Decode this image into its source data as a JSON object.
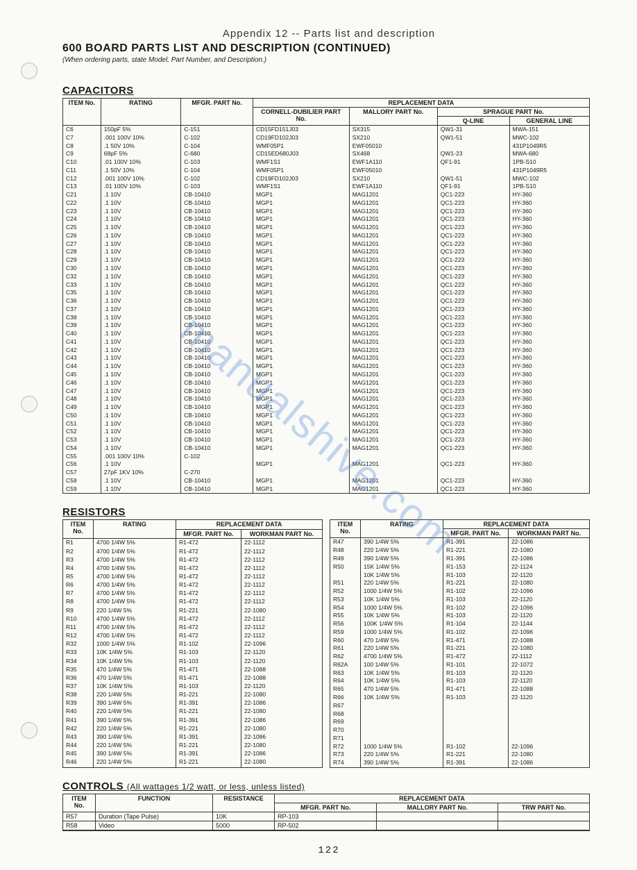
{
  "appendix": "Appendix 12  --  Parts list and description",
  "title": "600  BOARD PARTS LIST AND DESCRIPTION (CONTINUED)",
  "ordering_note": "(When ordering parts, state Model, Part Number, and Description.)",
  "watermark": "manualshive.com",
  "page_number": "122",
  "capacitors": {
    "heading": "CAPACITORS",
    "headers": {
      "item": "ITEM No.",
      "rating": "RATING",
      "mfgr": "MFGR. PART No.",
      "replacement": "REPLACEMENT DATA",
      "cornell": "CORNELL-DUBILIER PART No.",
      "mallory": "MALLORY PART No.",
      "sprague": "SPRAGUE PART No.",
      "qline": "Q-LINE",
      "general": "GENERAL LINE"
    },
    "rows": [
      [
        "C6",
        "150pF 5%",
        "C-151",
        "CD15FD151J03",
        "SX315",
        "QW1-31",
        "MWA-151"
      ],
      [
        "C7",
        ".001 100V 10%",
        "C-102",
        "CD19FD102J03",
        "SX210",
        "QW1-51",
        "MWC-102"
      ],
      [
        "C8",
        ".1 50V 10%",
        "C-104",
        "WMF05P1",
        "EWF05010",
        "",
        "431P1049R5"
      ],
      [
        "C9",
        "68pF 5%",
        "C-680",
        "CD15ED680J03",
        "SX468",
        "QW1-23",
        "MWA-680"
      ],
      [
        "C10",
        ".01 100V 10%",
        "C-103",
        "WMF1S1",
        "EWF1A110",
        "QF1-91",
        "1PB-S10"
      ],
      [
        "C11",
        ".1 50V 10%",
        "C-104",
        "WMF05P1",
        "EWF05010",
        "",
        "431P1049R5"
      ],
      [
        "C12",
        ".001 100V 10%",
        "C-102",
        "CD19FD102J03",
        "SX210",
        "QW1-51",
        "MWC-102"
      ],
      [
        "C13",
        ".01 100V 10%",
        "C-103",
        "WMF1S1",
        "EWF1A110",
        "QF1-91",
        "1PB-S10"
      ],
      [
        "C21",
        ".1 10V",
        "CB-10410",
        "MGP1",
        "MAG1201",
        "QC1-223",
        "HY-360"
      ],
      [
        "C22",
        ".1 10V",
        "CB-10410",
        "MGP1",
        "MAG1201",
        "QC1-223",
        "HY-360"
      ],
      [
        "C23",
        ".1 10V",
        "CB-10410",
        "MGP1",
        "MAG1201",
        "QC1-223",
        "HY-360"
      ],
      [
        "C24",
        ".1 10V",
        "CB-10410",
        "MGP1",
        "MAG1201",
        "QC1-223",
        "HY-360"
      ],
      [
        "C25",
        ".1 10V",
        "CB-10410",
        "MGP1",
        "MAG1201",
        "QC1-223",
        "HY-360"
      ],
      [
        "C26",
        ".1 10V",
        "CB-10410",
        "MGP1",
        "MAG1201",
        "QC1-223",
        "HY-360"
      ],
      [
        "C27",
        ".1 10V",
        "CB-10410",
        "MGP1",
        "MAG1201",
        "QC1-223",
        "HY-360"
      ],
      [
        "C28",
        ".1 10V",
        "CB-10410",
        "MGP1",
        "MAG1201",
        "QC1-223",
        "HY-360"
      ],
      [
        "C29",
        ".1 10V",
        "CB-10410",
        "MGP1",
        "MAG1201",
        "QC1-223",
        "HY-360"
      ],
      [
        "C30",
        ".1 10V",
        "CB-10410",
        "MGP1",
        "MAG1201",
        "QC1-223",
        "HY-360"
      ],
      [
        "C32",
        ".1 10V",
        "CB-10410",
        "MGP1",
        "MAG1201",
        "QC1-223",
        "HY-360"
      ],
      [
        "C33",
        ".1 10V",
        "CB-10410",
        "MGP1",
        "MAG1201",
        "QC1-223",
        "HY-360"
      ],
      [
        "C35",
        ".1 10V",
        "CB-10410",
        "MGP1",
        "MAG1201",
        "QC1-223",
        "HY-360"
      ],
      [
        "C36",
        ".1 10V",
        "CB-10410",
        "MGP1",
        "MAG1201",
        "QC1-223",
        "HY-360"
      ],
      [
        "C37",
        ".1 10V",
        "CB-10410",
        "MGP1",
        "MAG1201",
        "QC1-223",
        "HY-360"
      ],
      [
        "C38",
        ".1 10V",
        "CB-10410",
        "MGP1",
        "MAG1201",
        "QC1-223",
        "HY-360"
      ],
      [
        "C39",
        ".1 10V",
        "CB-10410",
        "MGP1",
        "MAG1201",
        "QC1-223",
        "HY-360"
      ],
      [
        "C40",
        ".1 10V",
        "CB-10410",
        "MGP1",
        "MAG1201",
        "QC1-223",
        "HY-360"
      ],
      [
        "C41",
        ".1 10V",
        "CB-10410",
        "MGP1",
        "MAG1201",
        "QC1-223",
        "HY-360"
      ],
      [
        "C42",
        ".1 10V",
        "CB-10410",
        "MGP1",
        "MAG1201",
        "QC1-223",
        "HY-360"
      ],
      [
        "C43",
        ".1 10V",
        "CB-10410",
        "MGP1",
        "MAG1201",
        "QC1-223",
        "HY-360"
      ],
      [
        "C44",
        ".1 10V",
        "CB-10410",
        "MGP1",
        "MAG1201",
        "QC1-223",
        "HY-360"
      ],
      [
        "C45",
        ".1 10V",
        "CB-10410",
        "MGP1",
        "MAG1201",
        "QC1-223",
        "HY-360"
      ],
      [
        "C46",
        ".1 10V",
        "CB-10410",
        "MGP1",
        "MAG1201",
        "QC1-223",
        "HY-360"
      ],
      [
        "C47",
        ".1 10V",
        "CB-10410",
        "MGP1",
        "MAG1201",
        "QC1-223",
        "HY-360"
      ],
      [
        "C48",
        ".1 10V",
        "CB-10410",
        "MGP1",
        "MAG1201",
        "QC1-223",
        "HY-360"
      ],
      [
        "C49",
        ".1 10V",
        "CB-10410",
        "MGP1",
        "MAG1201",
        "QC1-223",
        "HY-360"
      ],
      [
        "C50",
        ".1 10V",
        "CB-10410",
        "MGP1",
        "MAG1201",
        "QC1-223",
        "HY-360"
      ],
      [
        "C51",
        ".1 10V",
        "CB-10410",
        "MGP1",
        "MAG1201",
        "QC1-223",
        "HY-360"
      ],
      [
        "C52",
        ".1 10V",
        "CB-10410",
        "MGP1",
        "MAG1201",
        "QC1-223",
        "HY-360"
      ],
      [
        "C53",
        ".1 10V",
        "CB-10410",
        "MGP1",
        "MAG1201",
        "QC1-223",
        "HY-360"
      ],
      [
        "C54",
        ".1 10V",
        "CB-10410",
        "MGP1",
        "MAG1201",
        "QC1-223",
        "HY-360"
      ],
      [
        "C55",
        ".001 100V 10%",
        "C-102",
        "",
        "",
        "",
        ""
      ],
      [
        "C56",
        ".1 10V",
        "",
        "MGP1",
        "MAG1201",
        "QC1-223",
        "HY-360"
      ],
      [
        "C57",
        "27pF 1KV 10%",
        "C-270",
        "",
        "",
        "",
        ""
      ],
      [
        "C58",
        ".1 10V",
        "CB-10410",
        "MGP1",
        "MAG1201",
        "QC1-223",
        "HY-360"
      ],
      [
        "C59",
        ".1 10V",
        "CB-10410",
        "MGP1",
        "MAG1201",
        "QC1-223",
        "HY-360"
      ]
    ]
  },
  "resistors": {
    "heading": "RESISTORS",
    "headers": {
      "item": "ITEM No.",
      "rating": "RATING",
      "replacement": "REPLACEMENT DATA",
      "mfgr": "MFGR. PART No.",
      "workman": "WORKMAN PART No."
    },
    "left_rows": [
      [
        "R1",
        "4700 1/4W 5%",
        "R1-472",
        "22-1112"
      ],
      [
        "R2",
        "4700 1/4W 5%",
        "R1-472",
        "22-1112"
      ],
      [
        "R3",
        "4700 1/4W 5%",
        "R1-472",
        "22-1112"
      ],
      [
        "R4",
        "4700 1/4W 5%",
        "R1-472",
        "22-1112"
      ],
      [
        "R5",
        "4700 1/4W 5%",
        "R1-472",
        "22-1112"
      ],
      [
        "R6",
        "4700 1/4W 5%",
        "R1-472",
        "22-1112"
      ],
      [
        "R7",
        "4700 1/4W 5%",
        "R1-472",
        "22-1112"
      ],
      [
        "R8",
        "4700 1/4W 5%",
        "R1-472",
        "22-1112"
      ],
      [
        "R9",
        "220 1/4W 5%",
        "R1-221",
        "22-1080"
      ],
      [
        "R10",
        "4700 1/4W 5%",
        "R1-472",
        "22-1112"
      ],
      [
        "R11",
        "4700 1/4W 5%",
        "R1-472",
        "22-1112"
      ],
      [
        "R12",
        "4700 1/4W 5%",
        "R1-472",
        "22-1112"
      ],
      [
        "R32",
        "1000 1/4W 5%",
        "R1-102",
        "22-1096"
      ],
      [
        "R33",
        "10K 1/4W 5%",
        "R1-103",
        "22-1120"
      ],
      [
        "R34",
        "10K 1/4W 5%",
        "R1-103",
        "22-1120"
      ],
      [
        "R35",
        "470 1/4W 5%",
        "R1-471",
        "22-1088"
      ],
      [
        "R36",
        "470 1/4W 5%",
        "R1-471",
        "22-1088"
      ],
      [
        "R37",
        "10K 1/4W 5%",
        "R1-103",
        "22-1120"
      ],
      [
        "R38",
        "220 1/4W 5%",
        "R1-221",
        "22-1080"
      ],
      [
        "R39",
        "390 1/4W 5%",
        "R1-391",
        "22-1086"
      ],
      [
        "R40",
        "220 1/4W 5%",
        "R1-221",
        "22-1080"
      ],
      [
        "R41",
        "390 1/4W 5%",
        "R1-391",
        "22-1086"
      ],
      [
        "R42",
        "220 1/4W 5%",
        "R1-221",
        "22-1080"
      ],
      [
        "R43",
        "390 1/4W 5%",
        "R1-391",
        "22-1086"
      ],
      [
        "R44",
        "220 1/4W 5%",
        "R1-221",
        "22-1080"
      ],
      [
        "R45",
        "390 1/4W 5%",
        "R1-391",
        "22-1086"
      ],
      [
        "R46",
        "220 1/4W 5%",
        "R1-221",
        "22-1080"
      ]
    ],
    "right_rows": [
      [
        "R47",
        "390 1/4W 5%",
        "R1-391",
        "22-1086"
      ],
      [
        "R48",
        "220 1/4W 5%",
        "R1-221",
        "22-1080"
      ],
      [
        "R49",
        "390 1/4W 5%",
        "R1-391",
        "22-1086"
      ],
      [
        "R50",
        "15K 1/4W 5%",
        "R1-153",
        "22-1124"
      ],
      [
        "",
        "10K 1/4W 5%",
        "R1-103",
        "22-1120"
      ],
      [
        "R51",
        "220 1/4W 5%",
        "R1-221",
        "22-1080"
      ],
      [
        "R52",
        "1000 1/4W 5%",
        "R1-102",
        "22-1096"
      ],
      [
        "R53",
        "10K 1/4W 5%",
        "R1-103",
        "22-1120"
      ],
      [
        "R54",
        "1000 1/4W 5%",
        "R1-102",
        "22-1096"
      ],
      [
        "R55",
        "10K 1/4W 5%",
        "R1-103",
        "22-1120"
      ],
      [
        "R56",
        "100K 1/4W 5%",
        "R1-104",
        "22-1144"
      ],
      [
        "R59",
        "1000 1/4W 5%",
        "R1-102",
        "22-1096"
      ],
      [
        "R60",
        "470 1/4W 5%",
        "R1-471",
        "22-1088"
      ],
      [
        "R61",
        "220 1/4W 5%",
        "R1-221",
        "22-1080"
      ],
      [
        "R62",
        "4700 1/4W 5%",
        "R1-472",
        "22-1112"
      ],
      [
        "R62A",
        "100 1/4W 5%",
        "R1-101",
        "22-1072"
      ],
      [
        "R63",
        "10K 1/4W 5%",
        "R1-103",
        "22-1120"
      ],
      [
        "R64",
        "10K 1/4W 5%",
        "R1-103",
        "22-1120"
      ],
      [
        "R65",
        "470 1/4W 5%",
        "R1-471",
        "22-1088"
      ],
      [
        "R66",
        "10K 1/4W 5%",
        "R1-103",
        "22-1120"
      ],
      [
        "R67",
        "",
        "",
        ""
      ],
      [
        "R68",
        "",
        "",
        ""
      ],
      [
        "R69",
        "",
        "",
        ""
      ],
      [
        "R70",
        "",
        "",
        ""
      ],
      [
        "R71",
        "",
        "",
        ""
      ],
      [
        "R72",
        "1000 1/4W 5%",
        "R1-102",
        "22-1096"
      ],
      [
        "R73",
        "220 1/4W 5%",
        "R1-221",
        "22-1080"
      ],
      [
        "R74",
        "390 1/4W 5%",
        "R1-391",
        "22-1086"
      ]
    ]
  },
  "controls": {
    "heading": "CONTROLS",
    "note": "(All wattages 1/2 watt, or less, unless listed)",
    "headers": {
      "item": "ITEM No.",
      "function": "FUNCTION",
      "resistance": "RESISTANCE",
      "replacement": "REPLACEMENT DATA",
      "mfgr": "MFGR. PART No.",
      "mallory": "MALLORY PART No.",
      "trw": "TRW PART No."
    },
    "rows": [
      [
        "R57",
        "Duration (Tape Pulse)",
        "10K",
        "RP-103",
        "",
        ""
      ],
      [
        "R58",
        "Video",
        "5000",
        "RP-502",
        "",
        ""
      ]
    ]
  }
}
